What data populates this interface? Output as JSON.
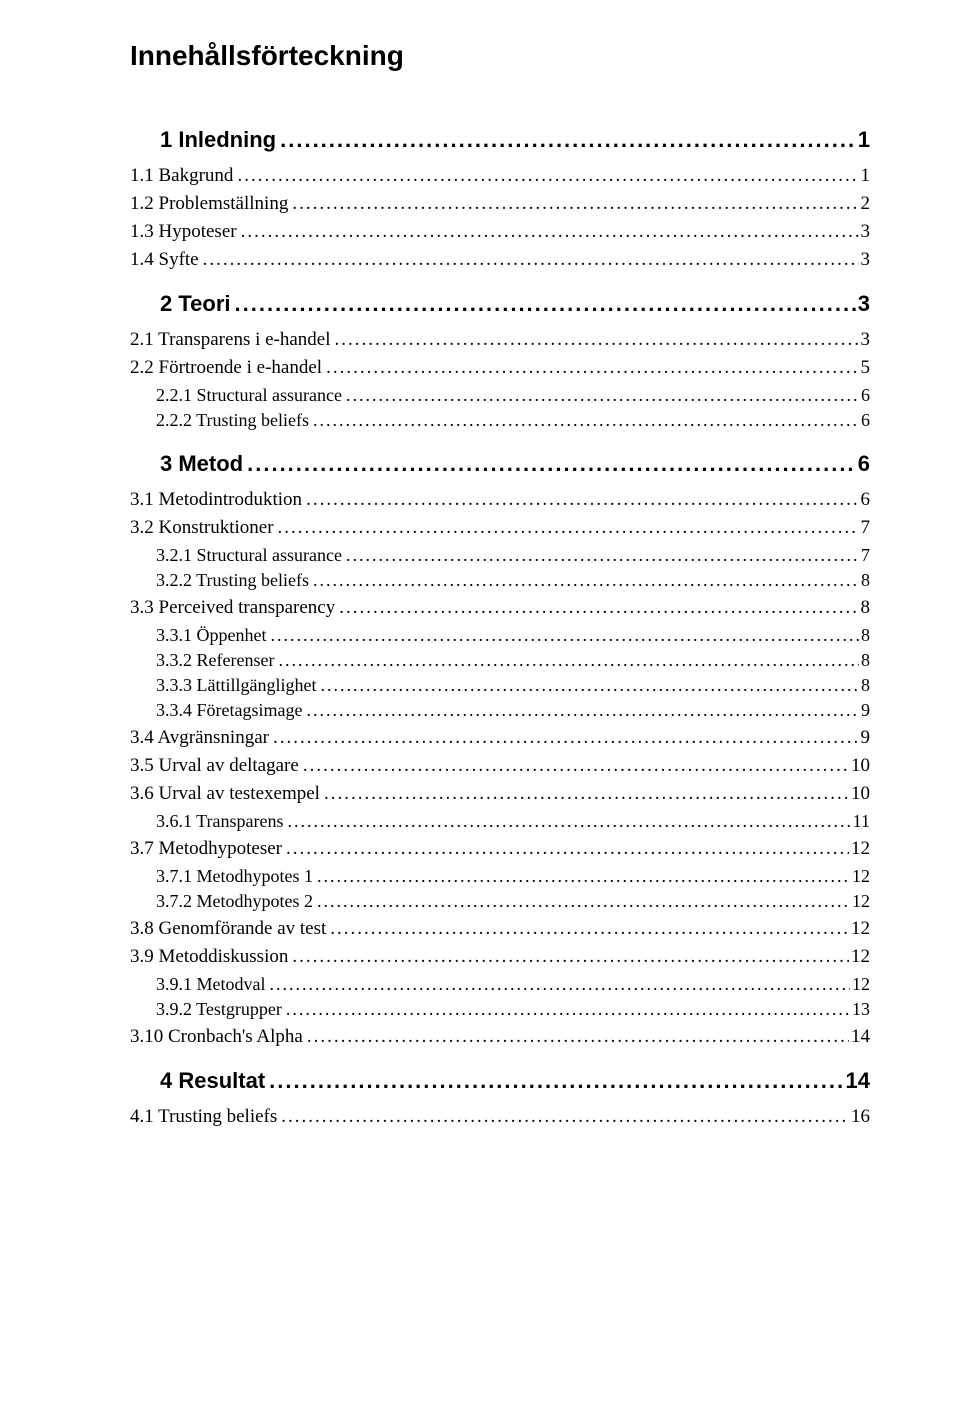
{
  "title": "Innehållsförteckning",
  "colors": {
    "background": "#ffffff",
    "text": "#000000"
  },
  "typography": {
    "header_font": "Verdana, Arial, sans-serif",
    "header_size_pt": 21,
    "lvl1_font": "Verdana, Arial, sans-serif",
    "lvl1_size_pt": 16,
    "lvl1_weight": "bold",
    "lvl2_font": "Georgia, serif",
    "lvl2_size_pt": 14,
    "lvl3_font": "Georgia, serif",
    "lvl3_size_pt": 13
  },
  "toc": [
    {
      "level": 1,
      "label": "1 Inledning",
      "page": "1"
    },
    {
      "level": 2,
      "label": "1.1 Bakgrund",
      "page": "1"
    },
    {
      "level": 2,
      "label": "1.2 Problemställning",
      "page": "2"
    },
    {
      "level": 2,
      "label": "1.3 Hypoteser",
      "page": "3"
    },
    {
      "level": 2,
      "label": "1.4 Syfte",
      "page": "3"
    },
    {
      "level": 1,
      "label": "2 Teori",
      "page": "3"
    },
    {
      "level": 2,
      "label": "2.1 Transparens i e-handel",
      "page": "3"
    },
    {
      "level": 2,
      "label": "2.2 Förtroende i e-handel",
      "page": "5"
    },
    {
      "level": 3,
      "label": "2.2.1 Structural assurance",
      "page": "6"
    },
    {
      "level": 3,
      "label": "2.2.2 Trusting beliefs",
      "page": "6"
    },
    {
      "level": 1,
      "label": "3 Metod",
      "page": "6"
    },
    {
      "level": 2,
      "label": "3.1 Metodintroduktion",
      "page": "6"
    },
    {
      "level": 2,
      "label": "3.2 Konstruktioner",
      "page": "7"
    },
    {
      "level": 3,
      "label": "3.2.1 Structural assurance",
      "page": "7"
    },
    {
      "level": 3,
      "label": "3.2.2 Trusting beliefs",
      "page": "8"
    },
    {
      "level": 2,
      "label": "3.3 Perceived transparency",
      "page": "8"
    },
    {
      "level": 3,
      "label": "3.3.1 Öppenhet",
      "page": "8"
    },
    {
      "level": 3,
      "label": "3.3.2 Referenser",
      "page": "8"
    },
    {
      "level": 3,
      "label": "3.3.3 Lättillgänglighet",
      "page": "8"
    },
    {
      "level": 3,
      "label": "3.3.4 Företagsimage",
      "page": "9"
    },
    {
      "level": 2,
      "label": "3.4 Avgränsningar",
      "page": "9"
    },
    {
      "level": 2,
      "label": "3.5 Urval av deltagare",
      "page": "10"
    },
    {
      "level": 2,
      "label": "3.6 Urval av testexempel",
      "page": "10"
    },
    {
      "level": 3,
      "label": "3.6.1 Transparens",
      "page": "11"
    },
    {
      "level": 2,
      "label": "3.7 Metodhypoteser",
      "page": "12"
    },
    {
      "level": 3,
      "label": "3.7.1 Metodhypotes 1",
      "page": "12"
    },
    {
      "level": 3,
      "label": "3.7.2 Metodhypotes 2",
      "page": "12"
    },
    {
      "level": 2,
      "label": "3.8 Genomförande av test",
      "page": "12"
    },
    {
      "level": 2,
      "label": "3.9 Metoddiskussion",
      "page": "12"
    },
    {
      "level": 3,
      "label": "3.9.1 Metodval",
      "page": "12"
    },
    {
      "level": 3,
      "label": "3.9.2 Testgrupper",
      "page": "13"
    },
    {
      "level": 2,
      "label": "3.10 Cronbach's Alpha",
      "page": "14"
    },
    {
      "level": 1,
      "label": "4 Resultat",
      "page": "14"
    },
    {
      "level": 2,
      "label": "4.1 Trusting beliefs",
      "page": "16"
    }
  ]
}
